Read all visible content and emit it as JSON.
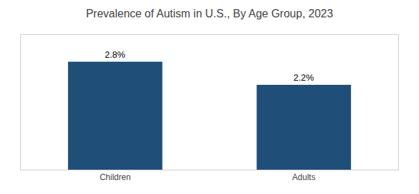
{
  "chart_data": {
    "type": "bar",
    "title": "Prevalence of Autism in U.S., By Age Group, 2023",
    "categories": [
      "Children",
      "Adults"
    ],
    "values": [
      2.8,
      2.2
    ],
    "value_labels": [
      "2.8%",
      "2.2%"
    ],
    "color": "#1f4e79",
    "ylim": [
      0,
      3.5
    ],
    "grid": false,
    "data_labels": true,
    "tick_labels": "x"
  }
}
